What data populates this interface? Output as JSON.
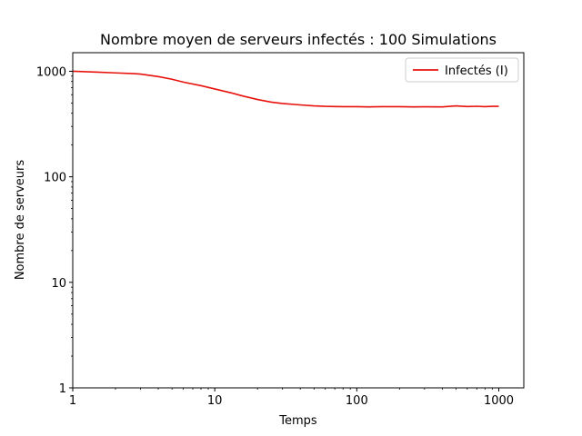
{
  "chart_data": {
    "type": "line",
    "title": "Nombre moyen de serveurs infectés : 100 Simulations",
    "xlabel": "Temps",
    "ylabel": "Nombre de serveurs",
    "xscale": "log",
    "yscale": "log",
    "xlim": [
      1,
      1500
    ],
    "ylim": [
      1,
      1500
    ],
    "xticks": [
      1,
      10,
      100,
      1000
    ],
    "xtick_labels": [
      "1",
      "10",
      "100",
      "1000"
    ],
    "yticks": [
      1,
      10,
      100,
      1000
    ],
    "ytick_labels": [
      "1",
      "10",
      "100",
      "1000"
    ],
    "grid": false,
    "legend": {
      "placement": "top-right"
    },
    "series": [
      {
        "name": "Infectés (I)",
        "color": "#e8120c",
        "x": [
          1,
          1.5,
          2,
          2.7,
          3,
          4,
          5,
          6,
          8,
          10,
          13,
          16,
          20,
          25,
          30,
          40,
          50,
          60,
          70,
          80,
          100,
          120,
          150,
          200,
          250,
          300,
          400,
          500,
          600,
          700,
          800,
          900,
          1000
        ],
        "y": [
          1000,
          980,
          965,
          950,
          940,
          890,
          840,
          790,
          730,
          680,
          625,
          580,
          540,
          510,
          495,
          480,
          470,
          465,
          463,
          462,
          462,
          460,
          462,
          462,
          460,
          461,
          460,
          470,
          463,
          466,
          462,
          465,
          465
        ]
      }
    ]
  }
}
